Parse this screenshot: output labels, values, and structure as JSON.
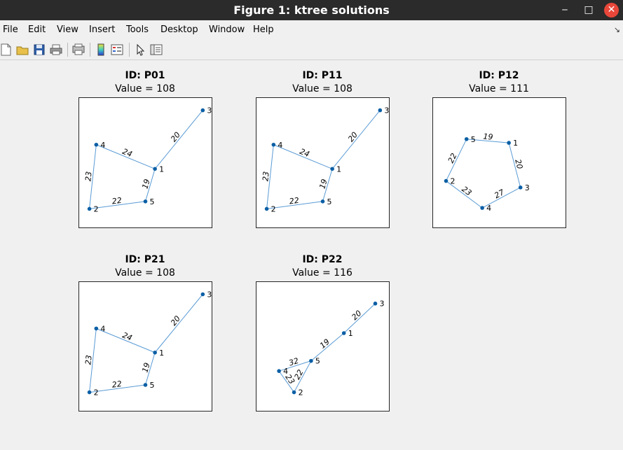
{
  "window": {
    "title": "Figure 1: ktree solutions"
  },
  "window_controls": {
    "minimize": "‒",
    "maximize": "□",
    "close": "✕"
  },
  "menu": [
    "File",
    "Edit",
    "View",
    "Insert",
    "Tools",
    "Desktop",
    "Window",
    "Help"
  ],
  "menu_overflow": "↘",
  "toolbar_icons": [
    "new-figure-icon",
    "open-file-icon",
    "save-icon",
    "print-icon",
    "print-preview-icon",
    "insert-colorbar-icon",
    "insert-legend-icon",
    "edit-plot-icon",
    "plot-browser-icon"
  ],
  "colors": {
    "edge": "#5a9bd5",
    "node": "#0b5fa5",
    "titlebar": "#2b2b2b",
    "close": "#e8473a"
  },
  "chart_data": [
    {
      "type": "scatter",
      "title": "ID: P01",
      "subtitle": "Value = 108",
      "nodes": [
        {
          "id": "1",
          "x": 1.02,
          "y": 0.53
        },
        {
          "id": "2",
          "x": 0.06,
          "y": 0.1
        },
        {
          "id": "3",
          "x": 1.72,
          "y": 1.16
        },
        {
          "id": "4",
          "x": 0.16,
          "y": 0.79
        },
        {
          "id": "5",
          "x": 0.88,
          "y": 0.18
        }
      ],
      "edges": [
        {
          "from": "1",
          "to": "3",
          "label": "20"
        },
        {
          "from": "1",
          "to": "4",
          "label": "24"
        },
        {
          "from": "1",
          "to": "5",
          "label": "19"
        },
        {
          "from": "4",
          "to": "2",
          "label": "23"
        },
        {
          "from": "2",
          "to": "5",
          "label": "22"
        }
      ]
    },
    {
      "type": "scatter",
      "title": "ID: P11",
      "subtitle": "Value = 108",
      "nodes": [
        {
          "id": "1",
          "x": 1.02,
          "y": 0.53
        },
        {
          "id": "2",
          "x": 0.06,
          "y": 0.1
        },
        {
          "id": "3",
          "x": 1.72,
          "y": 1.16
        },
        {
          "id": "4",
          "x": 0.16,
          "y": 0.79
        },
        {
          "id": "5",
          "x": 0.88,
          "y": 0.18
        }
      ],
      "edges": [
        {
          "from": "1",
          "to": "3",
          "label": "20"
        },
        {
          "from": "1",
          "to": "4",
          "label": "24"
        },
        {
          "from": "1",
          "to": "5",
          "label": "19"
        },
        {
          "from": "4",
          "to": "2",
          "label": "23"
        },
        {
          "from": "2",
          "to": "5",
          "label": "22"
        }
      ]
    },
    {
      "type": "scatter",
      "title": "ID: P12",
      "subtitle": "Value = 111",
      "nodes": [
        {
          "id": "1",
          "x": 1.02,
          "y": 0.81
        },
        {
          "id": "2",
          "x": 0.1,
          "y": 0.4
        },
        {
          "id": "3",
          "x": 1.19,
          "y": 0.33
        },
        {
          "id": "4",
          "x": 0.63,
          "y": 0.11
        },
        {
          "id": "5",
          "x": 0.4,
          "y": 0.85
        }
      ],
      "edges": [
        {
          "from": "5",
          "to": "1",
          "label": "19"
        },
        {
          "from": "1",
          "to": "3",
          "label": "20"
        },
        {
          "from": "3",
          "to": "4",
          "label": "27"
        },
        {
          "from": "4",
          "to": "2",
          "label": "23"
        },
        {
          "from": "2",
          "to": "5",
          "label": "22"
        }
      ]
    },
    {
      "type": "scatter",
      "title": "ID: P21",
      "subtitle": "Value = 108",
      "nodes": [
        {
          "id": "1",
          "x": 1.02,
          "y": 0.53
        },
        {
          "id": "2",
          "x": 0.06,
          "y": 0.1
        },
        {
          "id": "3",
          "x": 1.72,
          "y": 1.16
        },
        {
          "id": "4",
          "x": 0.16,
          "y": 0.79
        },
        {
          "id": "5",
          "x": 0.88,
          "y": 0.18
        }
      ],
      "edges": [
        {
          "from": "1",
          "to": "3",
          "label": "20"
        },
        {
          "from": "1",
          "to": "4",
          "label": "24"
        },
        {
          "from": "1",
          "to": "5",
          "label": "19"
        },
        {
          "from": "4",
          "to": "2",
          "label": "23"
        },
        {
          "from": "2",
          "to": "5",
          "label": "22"
        }
      ]
    },
    {
      "type": "scatter",
      "title": "ID: P22",
      "subtitle": "Value = 116",
      "nodes": [
        {
          "id": "1",
          "x": 1.19,
          "y": 0.74
        },
        {
          "id": "2",
          "x": 0.46,
          "y": 0.1
        },
        {
          "id": "3",
          "x": 1.65,
          "y": 1.06
        },
        {
          "id": "4",
          "x": 0.24,
          "y": 0.33
        },
        {
          "id": "5",
          "x": 0.71,
          "y": 0.44
        }
      ],
      "edges": [
        {
          "from": "3",
          "to": "1",
          "label": "20"
        },
        {
          "from": "1",
          "to": "5",
          "label": "19"
        },
        {
          "from": "5",
          "to": "4",
          "label": "32"
        },
        {
          "from": "4",
          "to": "2",
          "label": "23"
        },
        {
          "from": "5",
          "to": "2",
          "label": "22"
        }
      ]
    }
  ]
}
